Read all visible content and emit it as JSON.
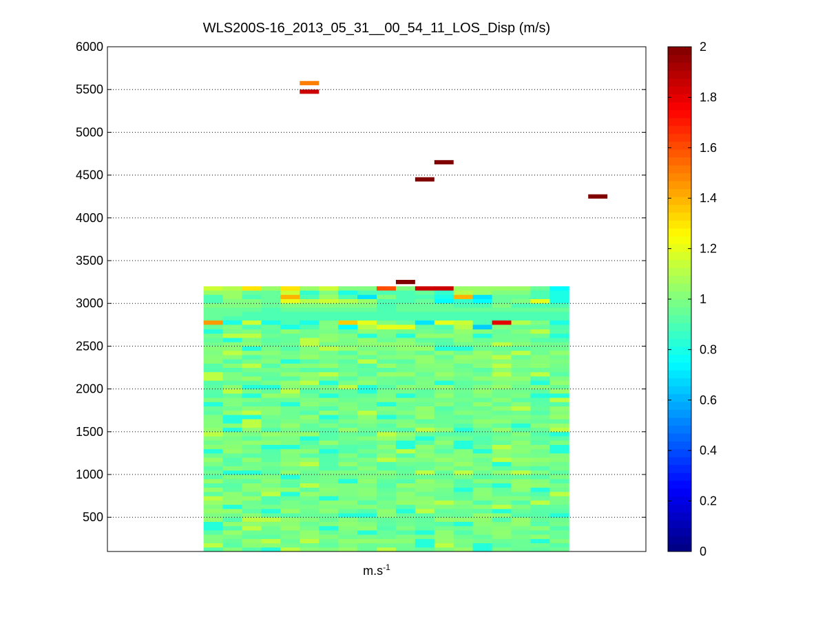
{
  "chart_data": {
    "type": "heatmap",
    "title": "WLS200S-16_2013_05_31__00_54_11_LOS_Disp (m/s)",
    "xlabel": {
      "base": "m.s",
      "superscript": "-1"
    },
    "ylabel": "",
    "ylim": [
      100,
      6000
    ],
    "yticks": [
      500,
      1000,
      1500,
      2000,
      2500,
      3000,
      3500,
      4000,
      4500,
      5000,
      5500,
      6000
    ],
    "grid": "horizontal dotted",
    "colormap": "jet",
    "colorbar": {
      "range": [
        0,
        2
      ],
      "ticks": [
        0,
        0.2,
        0.4,
        0.6,
        0.8,
        1,
        1.2,
        1.4,
        1.6,
        1.8,
        2
      ]
    },
    "columns": 19,
    "data_columns": [
      5,
      23
    ],
    "x_range": [
      0,
      28
    ],
    "bulk": {
      "y_range": [
        100,
        3200
      ],
      "row_height": 50,
      "typical_value": 0.98
    },
    "upper_rows": [
      {
        "y": 3175,
        "values": [
          1.15,
          1.1,
          1.3,
          1.05,
          1.3,
          1.05,
          1.15,
          1.0,
          1.0,
          1.6,
          1.0,
          1.85,
          1.85,
          1.05,
          1.05,
          1.05,
          1.05,
          0.95,
          0.75
        ]
      },
      {
        "y": 3125,
        "values": [
          1.05,
          1.05,
          0.95,
          0.95,
          1.15,
          0.85,
          1.0,
          0.8,
          0.9,
          0.9,
          0.9,
          0.95,
          0.85,
          1.1,
          1.05,
          1.0,
          1.0,
          0.9,
          0.8
        ]
      },
      {
        "y": 3075,
        "values": [
          0.9,
          1.05,
          0.9,
          0.95,
          1.4,
          0.9,
          1.05,
          0.9,
          0.7,
          1.0,
          0.9,
          0.9,
          0.8,
          1.4,
          0.7,
          0.95,
          0.95,
          0.9,
          0.8
        ]
      },
      {
        "y": 3025,
        "values": [
          0.9,
          1.0,
          1.0,
          0.95,
          1.2,
          1.1,
          1.15,
          1.1,
          1.05,
          0.9,
          0.9,
          0.95,
          0.75,
          0.85,
          0.75,
          0.95,
          1.0,
          1.2,
          0.8
        ]
      },
      {
        "y": 2975,
        "values": [
          1.0,
          1.0,
          1.0,
          0.95,
          1.0,
          1.0,
          1.0,
          1.0,
          1.0,
          0.9,
          0.95,
          0.95,
          0.95,
          0.9,
          0.9,
          1.0,
          0.9,
          0.9,
          0.9
        ]
      },
      {
        "y": 2925,
        "values": [
          0.95,
          0.95,
          0.95,
          0.9,
          0.95,
          0.95,
          0.95,
          0.95,
          0.95,
          0.9,
          0.95,
          0.95,
          0.95,
          0.95,
          0.95,
          0.95,
          0.95,
          0.95,
          0.95
        ]
      },
      {
        "y": 2875,
        "values": [
          0.95,
          0.95,
          0.9,
          0.9,
          0.9,
          0.9,
          0.9,
          0.9,
          0.9,
          0.9,
          0.9,
          0.9,
          0.9,
          0.9,
          0.9,
          0.9,
          0.9,
          0.9,
          0.9
        ]
      },
      {
        "y": 2825,
        "values": [
          0.95,
          0.9,
          0.9,
          0.9,
          0.9,
          0.9,
          0.9,
          0.9,
          0.9,
          0.9,
          0.9,
          0.9,
          0.9,
          0.9,
          0.9,
          0.9,
          0.9,
          0.9,
          0.9
        ]
      },
      {
        "y": 2775,
        "values": [
          1.45,
          0.8,
          1.15,
          0.8,
          0.9,
          0.8,
          1.0,
          1.35,
          1.2,
          1.0,
          0.95,
          0.7,
          1.2,
          1.15,
          0.9,
          1.8,
          1.1,
          1.0,
          0.8
        ]
      },
      {
        "y": 2725,
        "values": [
          0.95,
          1.0,
          0.9,
          0.95,
          0.8,
          0.9,
          1.0,
          0.75,
          1.1,
          1.2,
          1.2,
          0.95,
          0.9,
          1.1,
          0.65,
          1.0,
          0.95,
          0.95,
          0.9
        ]
      }
    ],
    "outliers": [
      {
        "col": 10,
        "y": 5575,
        "value": 1.5
      },
      {
        "col": 10,
        "y": 5475,
        "value": 1.85
      },
      {
        "col": 17,
        "y": 4650,
        "value": 2.0
      },
      {
        "col": 16,
        "y": 4450,
        "value": 2.0
      },
      {
        "col": 25,
        "y": 4250,
        "value": 2.0
      },
      {
        "col": 15,
        "y": 3250,
        "value": 2.0
      }
    ]
  }
}
